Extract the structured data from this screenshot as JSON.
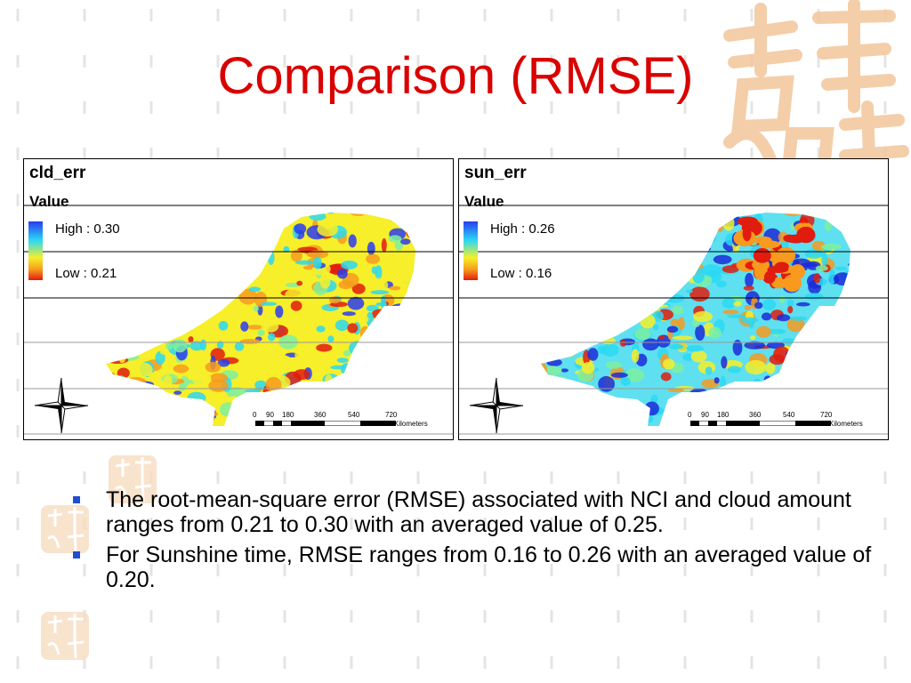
{
  "slide": {
    "title": "Comparison (RMSE)",
    "bullets": [
      "The root-mean-square error (RMSE) associated with NCI and cloud amount ranges from 0.21 to 0.30 with an averaged value of 0.25.",
      "For Sunshine time, RMSE ranges from 0.16 to 0.26 with an averaged value of 0.20."
    ]
  },
  "colors": {
    "title": "#d90000",
    "bullet_marker": "#1f4fd0",
    "ramp_high": "#2a3cf0",
    "ramp_low": "#e11c0e",
    "watermark": "#f3c9a0"
  },
  "maps": {
    "cld": {
      "name": "cld_err",
      "value_label": "Value",
      "legend_high": "High : 0.30",
      "legend_low": "Low : 0.21"
    },
    "sun": {
      "name": "sun_err",
      "value_label": "Value",
      "legend_high": "High : 0.26",
      "legend_low": "Low : 0.16"
    }
  },
  "scale": {
    "ticks": [
      "0",
      "90",
      "180",
      "360",
      "540",
      "720"
    ],
    "units": "Kilometers"
  }
}
